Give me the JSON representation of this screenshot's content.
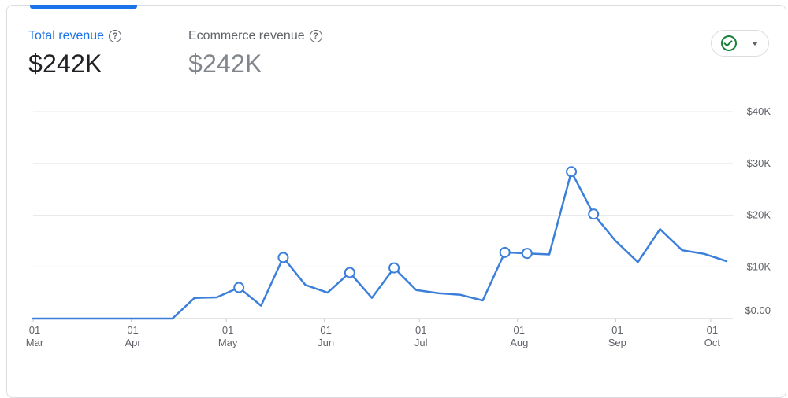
{
  "metrics": [
    {
      "label": "Total revenue",
      "value": "$242K"
    },
    {
      "label": "Ecommerce revenue",
      "value": "$242K"
    }
  ],
  "help_icon_glyph": "?",
  "compare_control": {
    "icon": "check-circle-icon",
    "caret": "dropdown-caret-icon"
  },
  "colors": {
    "accent": "#1a73e8",
    "line": "#3b7fdb",
    "grid": "#e8eaed",
    "check": "#188038"
  },
  "chart_data": {
    "type": "line",
    "x_start": "2024-03-01",
    "x_end": "2024-10-08",
    "ylim": [
      0,
      40000
    ],
    "y_ticks": [
      {
        "value": 0,
        "label": "$0.00"
      },
      {
        "value": 10000,
        "label": "$10K"
      },
      {
        "value": 20000,
        "label": "$20K"
      },
      {
        "value": 30000,
        "label": "$30K"
      },
      {
        "value": 40000,
        "label": "$40K"
      }
    ],
    "x_ticks": [
      {
        "date": "2024-03-01",
        "day": "01",
        "month": "Mar"
      },
      {
        "date": "2024-04-01",
        "day": "01",
        "month": "Apr"
      },
      {
        "date": "2024-05-01",
        "day": "01",
        "month": "May"
      },
      {
        "date": "2024-06-01",
        "day": "01",
        "month": "Jun"
      },
      {
        "date": "2024-07-01",
        "day": "01",
        "month": "Jul"
      },
      {
        "date": "2024-08-01",
        "day": "01",
        "month": "Aug"
      },
      {
        "date": "2024-09-01",
        "day": "01",
        "month": "Sep"
      },
      {
        "date": "2024-10-01",
        "day": "01",
        "month": "Oct"
      }
    ],
    "series": [
      {
        "points": [
          {
            "x": "2024-03-01",
            "y": 0
          },
          {
            "x": "2024-04-14",
            "y": 0
          },
          {
            "x": "2024-04-21",
            "y": 4000
          },
          {
            "x": "2024-04-28",
            "y": 4100
          },
          {
            "x": "2024-05-05",
            "y": 6000,
            "marker": true
          },
          {
            "x": "2024-05-12",
            "y": 2500
          },
          {
            "x": "2024-05-19",
            "y": 11800,
            "marker": true
          },
          {
            "x": "2024-05-26",
            "y": 6500
          },
          {
            "x": "2024-06-02",
            "y": 5000
          },
          {
            "x": "2024-06-09",
            "y": 8900,
            "marker": true
          },
          {
            "x": "2024-06-16",
            "y": 4000
          },
          {
            "x": "2024-06-23",
            "y": 9800,
            "marker": true
          },
          {
            "x": "2024-06-30",
            "y": 5500
          },
          {
            "x": "2024-07-07",
            "y": 4900
          },
          {
            "x": "2024-07-14",
            "y": 4600
          },
          {
            "x": "2024-07-21",
            "y": 3500
          },
          {
            "x": "2024-07-28",
            "y": 12800,
            "marker": true
          },
          {
            "x": "2024-08-04",
            "y": 12600,
            "marker": true
          },
          {
            "x": "2024-08-11",
            "y": 12400
          },
          {
            "x": "2024-08-18",
            "y": 28400,
            "marker": true
          },
          {
            "x": "2024-08-25",
            "y": 20200,
            "marker": true
          },
          {
            "x": "2024-09-01",
            "y": 15000
          },
          {
            "x": "2024-09-08",
            "y": 10900
          },
          {
            "x": "2024-09-15",
            "y": 17300
          },
          {
            "x": "2024-09-22",
            "y": 13200
          },
          {
            "x": "2024-09-29",
            "y": 12500
          },
          {
            "x": "2024-10-06",
            "y": 11100
          }
        ]
      }
    ]
  }
}
